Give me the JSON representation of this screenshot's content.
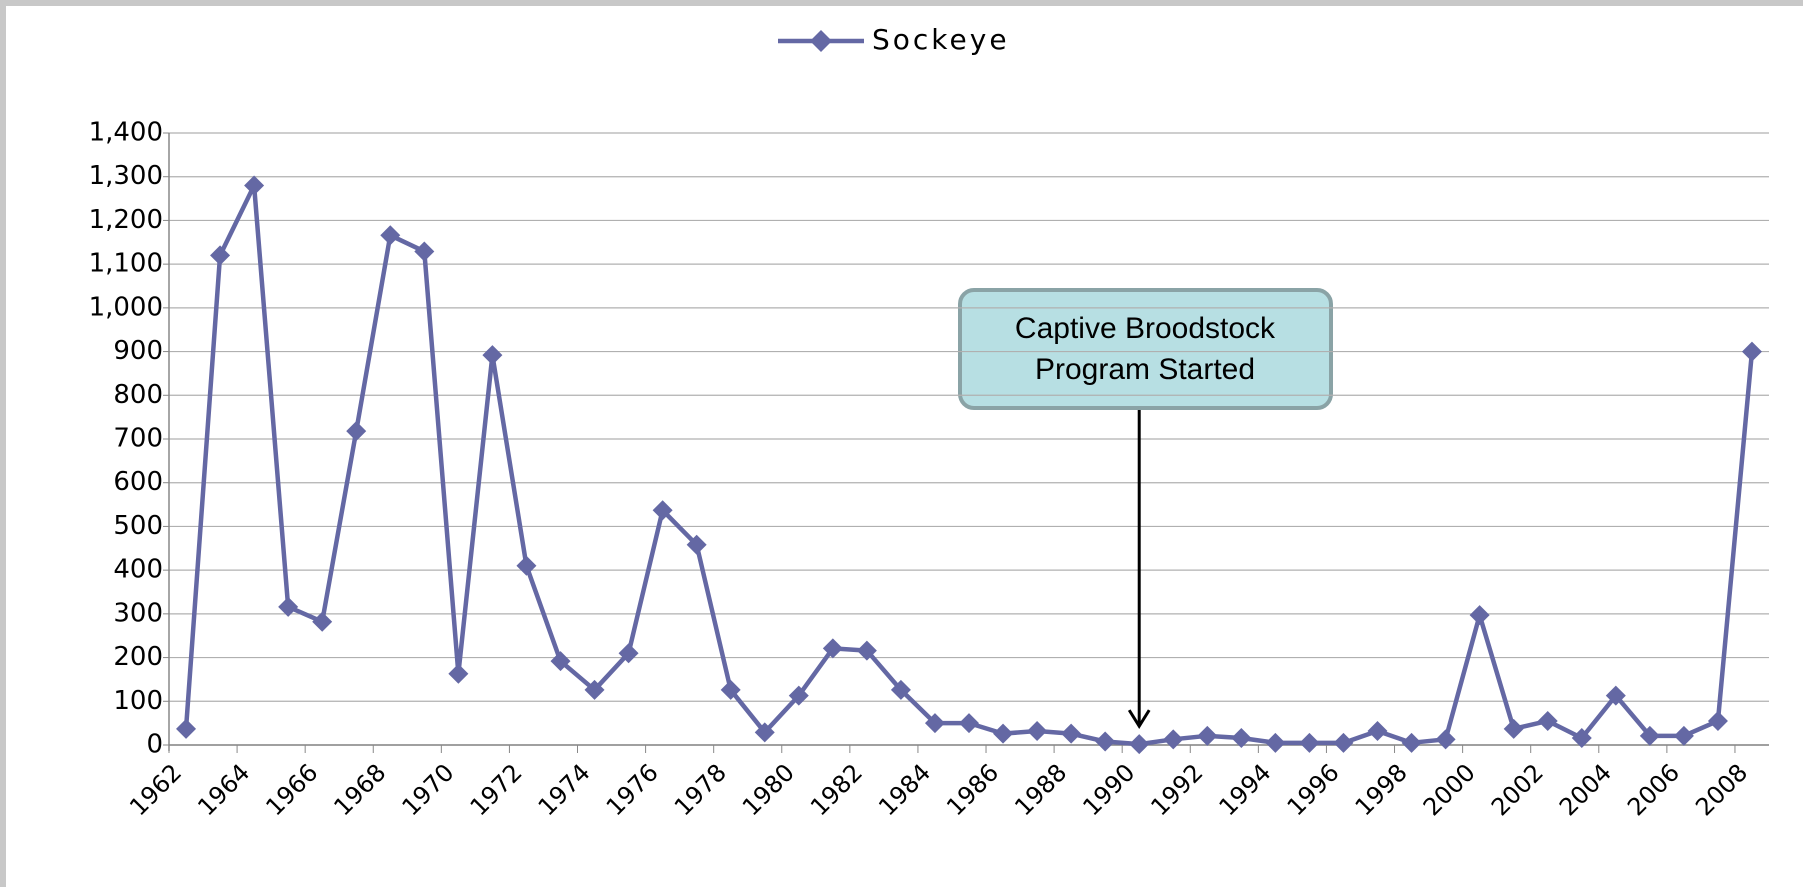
{
  "chart_data": {
    "type": "line",
    "categories": [
      "1962",
      null,
      "1964",
      null,
      "1966",
      null,
      "1968",
      null,
      "1970",
      null,
      "1972",
      null,
      "1974",
      null,
      "1976",
      null,
      "1978",
      null,
      "1980",
      null,
      "1982",
      null,
      "1984",
      null,
      "1986",
      null,
      "1988",
      null,
      "1990",
      null,
      "1992",
      null,
      "1994",
      null,
      "1996",
      null,
      "1998",
      null,
      "2000",
      null,
      "2002",
      null,
      "2004",
      null,
      "2006",
      null,
      "2008"
    ],
    "series": [
      {
        "name": "Sockeye",
        "color": "#6468a4",
        "values": [
          37,
          1120,
          1280,
          316,
          282,
          718,
          1166,
          1129,
          163,
          892,
          410,
          192,
          126,
          210,
          537,
          458,
          126,
          29,
          113,
          221,
          216,
          126,
          50,
          50,
          26,
          32,
          26,
          8,
          2,
          13,
          21,
          16,
          5,
          5,
          5,
          32,
          5,
          13,
          297,
          37,
          55,
          16,
          113,
          21,
          21,
          55,
          900
        ]
      }
    ],
    "ylim": [
      0,
      1400
    ],
    "yticks": [
      0,
      100,
      200,
      300,
      400,
      500,
      600,
      700,
      800,
      900,
      {
        "value": 1000,
        "label": "1,000"
      },
      {
        "value": 1100,
        "label": "1,100"
      },
      {
        "value": 1200,
        "label": "1,200"
      },
      {
        "value": 1300,
        "label": "1,300"
      },
      {
        "value": 1400,
        "label": "1,400"
      }
    ],
    "grid": true,
    "legend": "top",
    "annotation_lines": [
      "Captive Broodstock",
      "Program Started"
    ]
  }
}
